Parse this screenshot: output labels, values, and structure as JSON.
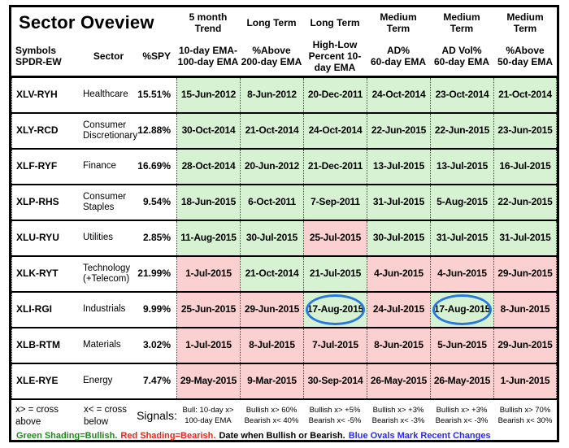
{
  "title": "Sector Oveview",
  "colors": {
    "bullish_bg": "#d7f2d2",
    "bearish_bg": "#fbd0d0",
    "oval_blue": "#2878dd",
    "legend_green": "#1f8a1f",
    "legend_red": "#fb2015",
    "legend_blue": "#2a2aee",
    "border": "#000000"
  },
  "group_headers": [
    "5 month\nTrend",
    "Long Term",
    "Long Term",
    "Medium\nTerm",
    "Medium\nTerm",
    "Medium\nTerm"
  ],
  "column_headers": [
    "Symbols\nSPDR-EW",
    "Sector",
    "%SPY",
    "10-day EMA-\n100-day EMA",
    "%Above\n200-day EMA",
    "High-Low\nPercent 10-\nday EMA",
    "AD%\n60-day EMA",
    "AD Vol%\n60-day EMA",
    "%Above\n50-day EMA"
  ],
  "table": {
    "rows": [
      {
        "symbol": "XLV-RYH",
        "sector": "Healthcare",
        "spy": "15.51%",
        "cells": [
          {
            "text": "15-Jun-2012",
            "status": "bullish"
          },
          {
            "text": "8-Jun-2012",
            "status": "bullish"
          },
          {
            "text": "20-Dec-2011",
            "status": "bullish"
          },
          {
            "text": "24-Oct-2014",
            "status": "bullish"
          },
          {
            "text": "23-Oct-2014",
            "status": "bullish"
          },
          {
            "text": "21-Oct-2014",
            "status": "bullish"
          }
        ]
      },
      {
        "symbol": "XLY-RCD",
        "sector": "Consumer\nDiscretionary",
        "spy": "12.88%",
        "cells": [
          {
            "text": "30-Oct-2014",
            "status": "bullish"
          },
          {
            "text": "21-Oct-2014",
            "status": "bullish"
          },
          {
            "text": "24-Oct-2014",
            "status": "bullish"
          },
          {
            "text": "22-Jun-2015",
            "status": "bullish"
          },
          {
            "text": "22-Jun-2015",
            "status": "bullish"
          },
          {
            "text": "23-Jun-2015",
            "status": "bullish"
          }
        ]
      },
      {
        "symbol": "XLF-RYF",
        "sector": "Finance",
        "spy": "16.69%",
        "cells": [
          {
            "text": "28-Oct-2014",
            "status": "bullish"
          },
          {
            "text": "20-Jun-2012",
            "status": "bullish"
          },
          {
            "text": "21-Dec-2011",
            "status": "bullish"
          },
          {
            "text": "13-Jul-2015",
            "status": "bullish"
          },
          {
            "text": "13-Jul-2015",
            "status": "bullish"
          },
          {
            "text": "16-Jul-2015",
            "status": "bullish"
          }
        ]
      },
      {
        "symbol": "XLP-RHS",
        "sector": "Consumer\nStaples",
        "spy": "9.54%",
        "cells": [
          {
            "text": "18-Jun-2015",
            "status": "bullish"
          },
          {
            "text": "6-Oct-2011",
            "status": "bullish"
          },
          {
            "text": "7-Sep-2011",
            "status": "bullish"
          },
          {
            "text": "31-Jul-2015",
            "status": "bullish"
          },
          {
            "text": "5-Aug-2015",
            "status": "bullish"
          },
          {
            "text": "22-Jun-2015",
            "status": "bullish"
          }
        ]
      },
      {
        "symbol": "XLU-RYU",
        "sector": "Utilities",
        "spy": "2.85%",
        "cells": [
          {
            "text": "11-Aug-2015",
            "status": "bullish"
          },
          {
            "text": "30-Jul-2015",
            "status": "bullish"
          },
          {
            "text": "25-Jul-2015",
            "status": "bearish"
          },
          {
            "text": "30-Jul-2015",
            "status": "bullish"
          },
          {
            "text": "31-Jul-2015",
            "status": "bullish"
          },
          {
            "text": "31-Jul-2015",
            "status": "bullish"
          }
        ]
      },
      {
        "symbol": "XLK-RYT",
        "sector": "Technology\n(+Telecom)",
        "spy": "21.99%",
        "cells": [
          {
            "text": "1-Jul-2015",
            "status": "bearish"
          },
          {
            "text": "21-Oct-2014",
            "status": "bullish"
          },
          {
            "text": "21-Jul-2015",
            "status": "bullish"
          },
          {
            "text": "4-Jun-2015",
            "status": "bearish"
          },
          {
            "text": "4-Jun-2015",
            "status": "bearish"
          },
          {
            "text": "29-Jun-2015",
            "status": "bearish"
          }
        ]
      },
      {
        "symbol": "XLI-RGI",
        "sector": "Industrials",
        "spy": "9.99%",
        "cells": [
          {
            "text": "25-Jun-2015",
            "status": "bearish"
          },
          {
            "text": "29-Jun-2015",
            "status": "bearish"
          },
          {
            "text": "17-Aug-2015",
            "status": "bullish",
            "oval": true
          },
          {
            "text": "24-Jul-2015",
            "status": "bearish"
          },
          {
            "text": "17-Aug-2015",
            "status": "bullish",
            "oval": true
          },
          {
            "text": "8-Jun-2015",
            "status": "bearish"
          }
        ]
      },
      {
        "symbol": "XLB-RTM",
        "sector": "Materials",
        "spy": "3.02%",
        "cells": [
          {
            "text": "1-Jul-2015",
            "status": "bearish"
          },
          {
            "text": "8-Jul-2015",
            "status": "bearish"
          },
          {
            "text": "7-Jul-2015",
            "status": "bearish"
          },
          {
            "text": "8-Jun-2015",
            "status": "bearish"
          },
          {
            "text": "5-Jun-2015",
            "status": "bearish"
          },
          {
            "text": "29-Jun-2015",
            "status": "bearish"
          }
        ]
      },
      {
        "symbol": "XLE-RYE",
        "sector": "Energy",
        "spy": "7.47%",
        "cells": [
          {
            "text": "29-May-2015",
            "status": "bearish"
          },
          {
            "text": "9-Mar-2015",
            "status": "bearish"
          },
          {
            "text": "30-Sep-2014",
            "status": "bearish"
          },
          {
            "text": "26-May-2015",
            "status": "bearish"
          },
          {
            "text": "26-May-2015",
            "status": "bearish"
          },
          {
            "text": "1-Jun-2015",
            "status": "bearish"
          }
        ]
      }
    ]
  },
  "signals": [
    "x> = cross\nabove",
    "x< = cross\nbelow",
    "Signals:",
    "Bull: 10-day x>\n100-day EMA",
    "Bullish x> 60%\nBearish x< 40%",
    "Bullish x> +5%\nBearish x< -5%",
    "Bullish x> +3%\nBearish x< -3%",
    "Bullish x> +3%\nBearish x< -3%",
    "Bullish x> 70%\nBearish x< 30%"
  ],
  "footer": {
    "green": "Green Shading=Bullish.",
    "red": "Red Shading=Bearish.",
    "black": "Date when Bullish or Bearish.",
    "blue": "Blue Ovals Mark Recent Changes"
  }
}
